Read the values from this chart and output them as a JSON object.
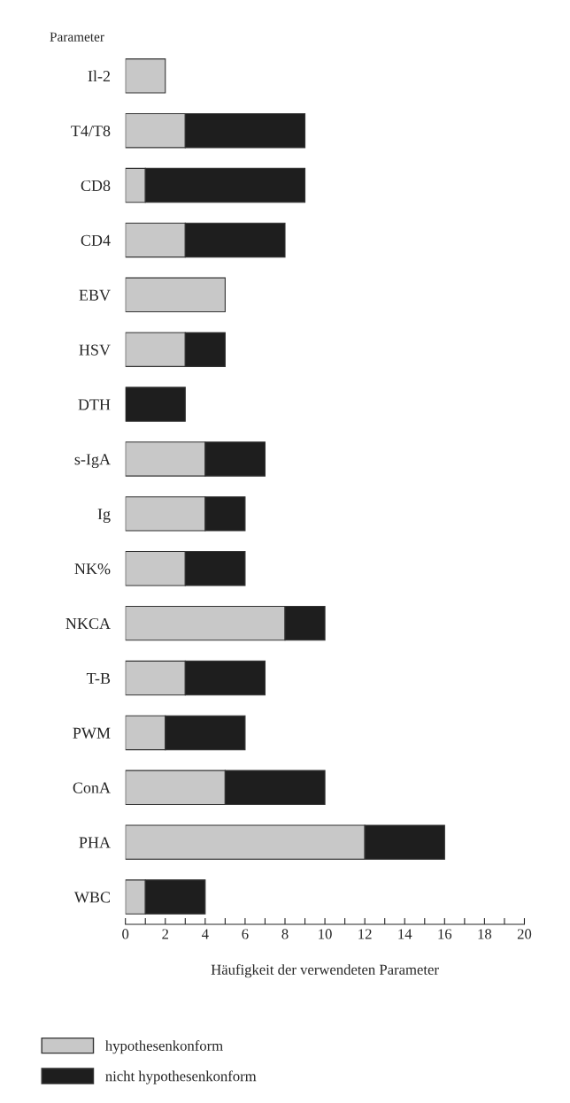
{
  "chart_data": {
    "type": "bar",
    "orientation": "horizontal",
    "stacked": true,
    "categories": [
      "Il-2",
      "T4/T8",
      "CD8",
      "CD4",
      "EBV",
      "HSV",
      "DTH",
      "s-IgA",
      "Ig",
      "NK%",
      "NKCA",
      "T-B",
      "PWM",
      "ConA",
      "PHA",
      "WBC"
    ],
    "series": [
      {
        "name": "hypothesenkonform",
        "color": "#c8c8c8",
        "values": [
          2,
          3,
          1,
          3,
          5,
          3,
          0,
          4,
          4,
          3,
          8,
          3,
          2,
          5,
          12,
          1
        ]
      },
      {
        "name": "nicht hypothesenkonform",
        "color": "#1e1e1e",
        "values": [
          0,
          6,
          8,
          5,
          0,
          2,
          3,
          3,
          2,
          3,
          2,
          4,
          4,
          5,
          4,
          3
        ]
      }
    ],
    "xlabel": "Häufigkeit der verwendeten Parameter",
    "ylabel": "Parameter",
    "xlim": [
      0,
      20
    ],
    "xticks": [
      0,
      {
        "value": 1,
        "label": null
      },
      2,
      {
        "value": 3,
        "label": null
      },
      4,
      {
        "value": 5,
        "label": null
      },
      6,
      {
        "value": 7,
        "label": null
      },
      8,
      {
        "value": 9,
        "label": null
      },
      10,
      {
        "value": 11,
        "label": null
      },
      12,
      {
        "value": 13,
        "label": null
      },
      14,
      {
        "value": 15,
        "label": null
      },
      16,
      {
        "value": 17,
        "label": null
      },
      18,
      {
        "value": 19,
        "label": null
      },
      20
    ],
    "grid": false,
    "legend": "bottom left"
  }
}
